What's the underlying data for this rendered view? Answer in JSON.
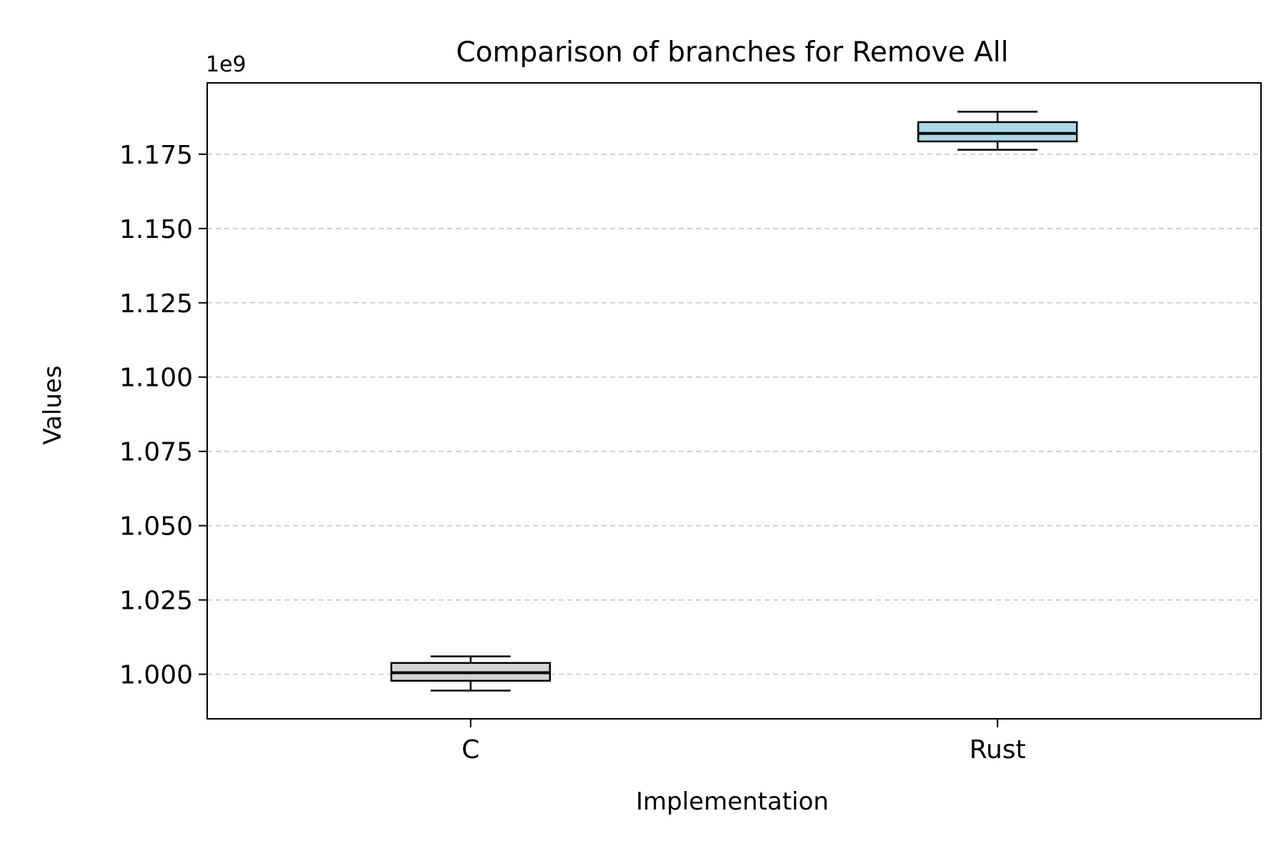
{
  "chart_data": {
    "type": "box",
    "title": "Comparison of branches for Remove All",
    "xlabel": "Implementation",
    "ylabel": "Values",
    "y_offset_label": "1e9",
    "y_scale": 1000000000,
    "ylim": [
      0.985,
      1.199
    ],
    "y_ticks": [
      1.0,
      1.025,
      1.05,
      1.075,
      1.1,
      1.125,
      1.15,
      1.175
    ],
    "y_tick_labels": [
      "1.000",
      "1.025",
      "1.050",
      "1.075",
      "1.100",
      "1.125",
      "1.150",
      "1.175"
    ],
    "grid": "horizontal-dashed",
    "categories": [
      "C",
      "Rust"
    ],
    "boxes": [
      {
        "category": "C",
        "whisker_low": 0.9945,
        "q1": 0.9978,
        "median": 1.0005,
        "q3": 1.0038,
        "whisker_high": 1.006,
        "color": "#d3d3d3"
      },
      {
        "category": "Rust",
        "whisker_low": 1.1765,
        "q1": 1.1793,
        "median": 1.182,
        "q3": 1.1858,
        "whisker_high": 1.1893,
        "color": "#add8e6"
      }
    ]
  }
}
